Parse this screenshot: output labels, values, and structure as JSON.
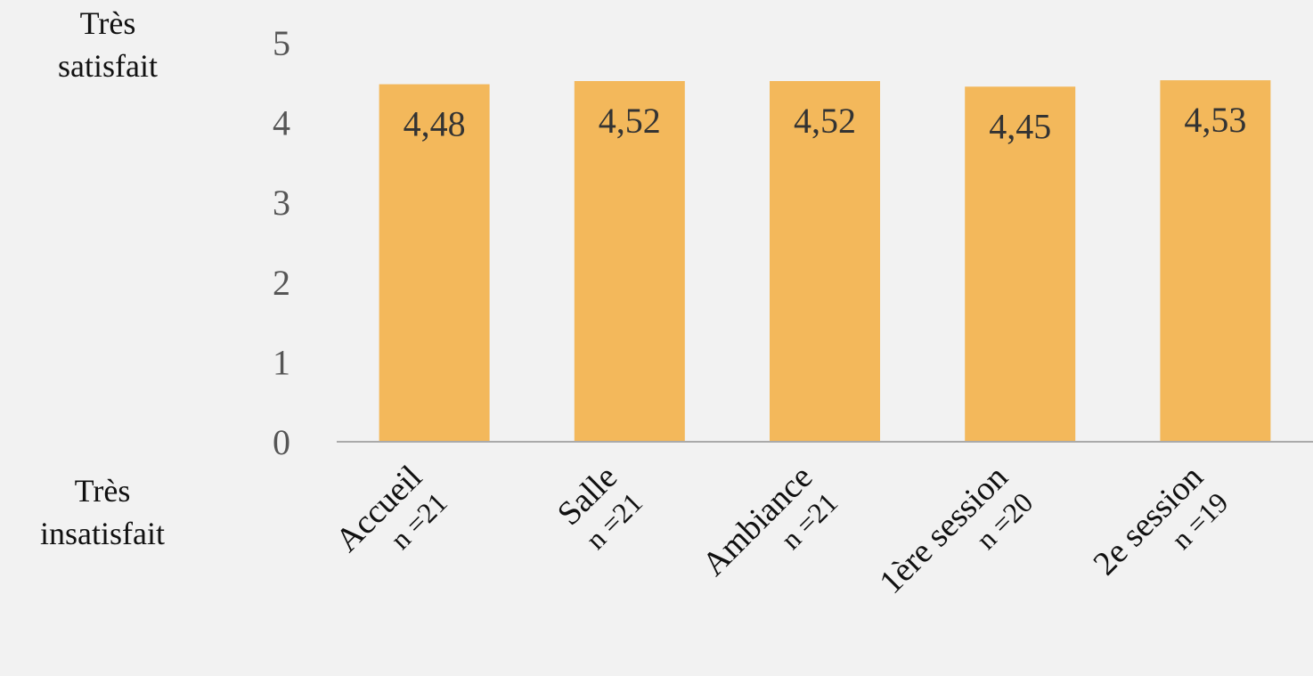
{
  "labels": {
    "top": [
      "Très",
      "satisfait"
    ],
    "bottom": [
      "Très",
      "insatisfait"
    ]
  },
  "colors": {
    "bar": "#f3b85b",
    "axis": "#aaaaaa",
    "background": "#f2f2f2"
  },
  "chart_data": {
    "type": "bar",
    "categories": [
      "Accueil",
      "Salle",
      "Ambiance",
      "1ère session",
      "2e session"
    ],
    "n_labels": [
      "n =21",
      "n =21",
      "n =21",
      "n =20",
      "n =19"
    ],
    "values": [
      4.48,
      4.52,
      4.52,
      4.45,
      4.53
    ],
    "value_labels": [
      "4,48",
      "4,52",
      "4,52",
      "4,45",
      "4,53"
    ],
    "ylim": [
      0,
      5
    ],
    "yticks": [
      0,
      1,
      2,
      3,
      4,
      5
    ],
    "grid": false,
    "legend": "none"
  }
}
